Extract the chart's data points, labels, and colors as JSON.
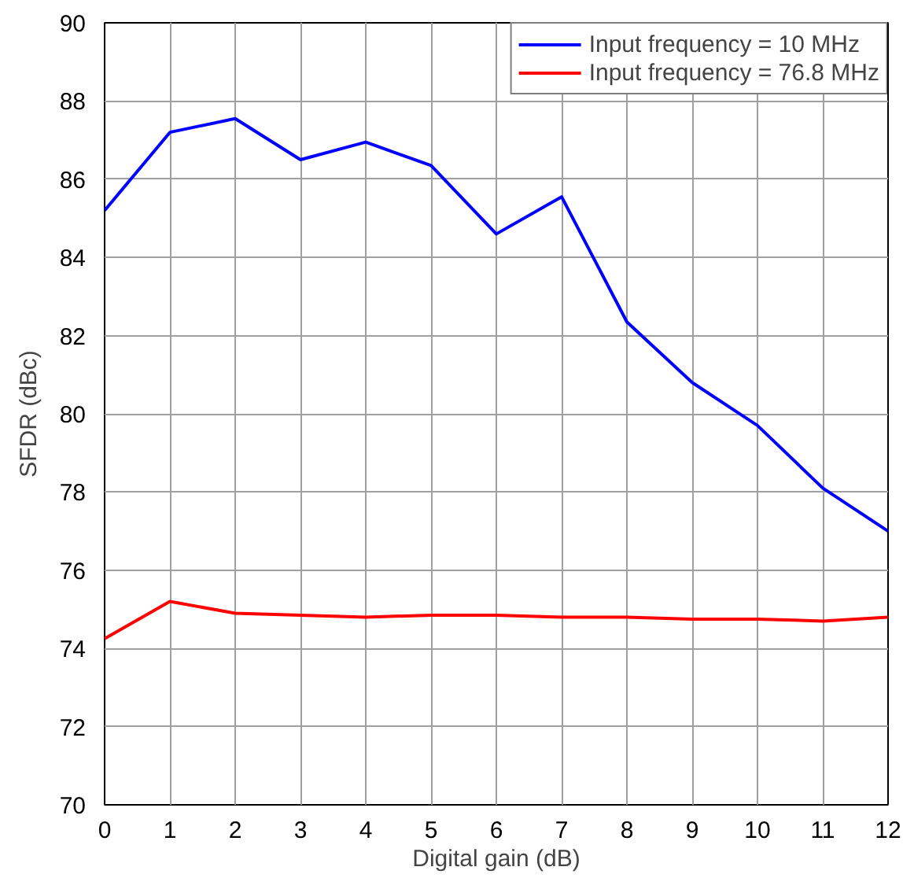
{
  "chart_data": {
    "type": "line",
    "xlabel": "Digital gain (dB)",
    "ylabel": "SFDR (dBc)",
    "x": [
      0,
      1,
      2,
      3,
      4,
      5,
      6,
      7,
      8,
      9,
      10,
      11,
      12
    ],
    "series": [
      {
        "name": "Input frequency = 10 MHz",
        "color": "#0000ff",
        "values": [
          85.2,
          87.2,
          87.55,
          86.5,
          86.95,
          86.35,
          84.6,
          85.55,
          82.35,
          80.8,
          79.7,
          78.1,
          77.0
        ]
      },
      {
        "name": "Input frequency = 76.8 MHz",
        "color": "#ff0000",
        "values": [
          74.25,
          75.2,
          74.9,
          74.85,
          74.8,
          74.85,
          74.85,
          74.8,
          74.8,
          74.75,
          74.75,
          74.7,
          74.8
        ]
      }
    ],
    "xlim": [
      0,
      12
    ],
    "ylim": [
      70,
      90
    ],
    "xticks": [
      0,
      1,
      2,
      3,
      4,
      5,
      6,
      7,
      8,
      9,
      10,
      11,
      12
    ],
    "yticks": [
      70,
      72,
      74,
      76,
      78,
      80,
      82,
      84,
      86,
      88,
      90
    ],
    "grid": true,
    "legend": "top right",
    "marker": "none",
    "line_style": "solid"
  }
}
